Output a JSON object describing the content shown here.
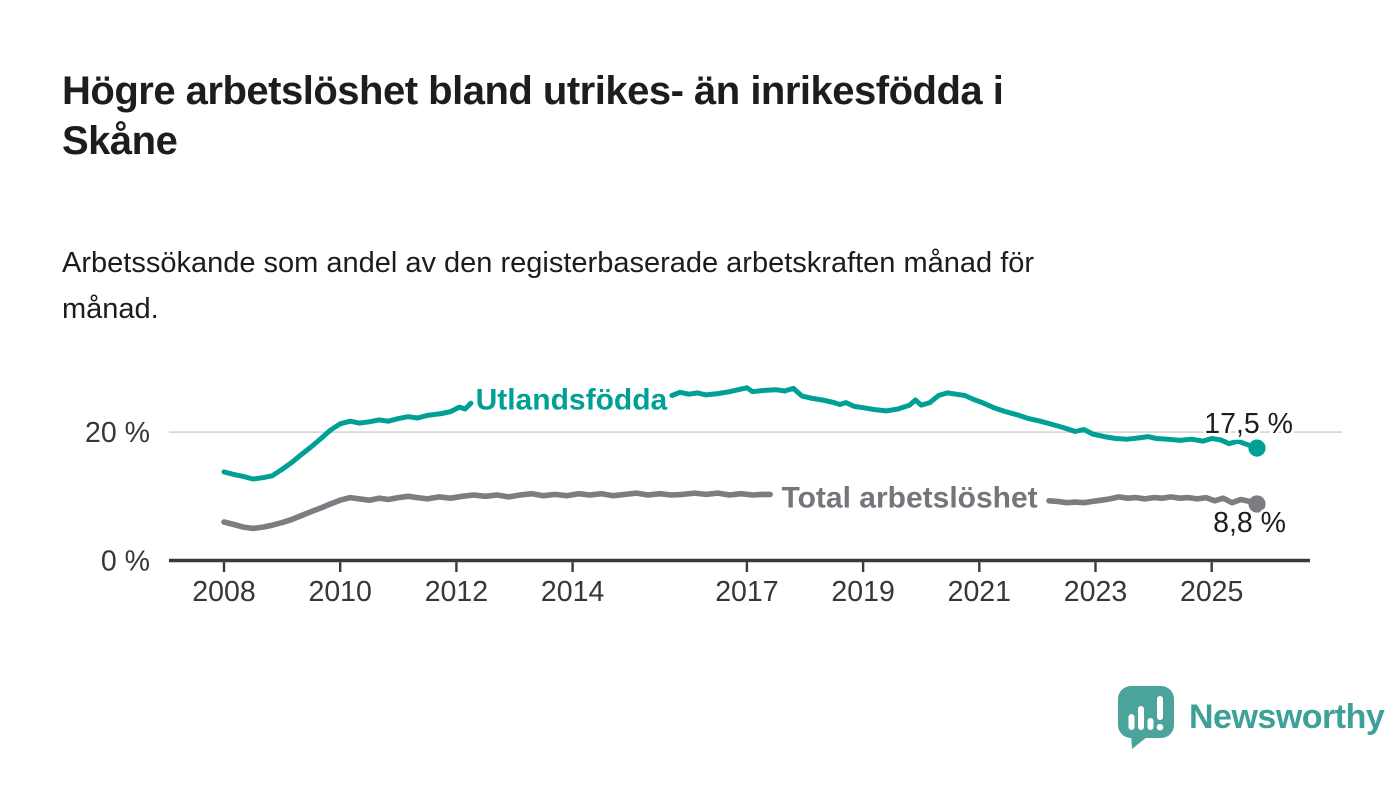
{
  "header": {
    "title": "Högre arbetslöshet bland utrikes- än inrikesfödda i Skåne",
    "title_lines": [
      "Högre arbetslöshet bland utrikes- än inrikesfödda i",
      "Skåne"
    ],
    "subtitle": "Arbetssökande som andel av den registerbaserade arbetskraften månad för månad.",
    "subtitle_lines": [
      "Arbetssökande som andel av den registerbaserade arbetskraften månad för",
      "månad."
    ]
  },
  "footer": {
    "brand": "Newsworthy"
  },
  "colors": {
    "teal_line": "#00a096",
    "gray_line": "#7d7c82",
    "gray_label": "#76757b",
    "axis": "#3a3a3a",
    "grid": "#d8d8d8",
    "text": "#1d1d1b",
    "brand_text_teal": "#3da099",
    "brand_bubble_teal": "#4ba49c"
  },
  "chart_data": {
    "type": "line",
    "unit": "%",
    "x_axis": {
      "ticks": [
        2008,
        2010,
        2012,
        2014,
        2017,
        2019,
        2021,
        2023,
        2025
      ],
      "tick_labels": [
        "2008",
        "2010",
        "2012",
        "2014",
        "2017",
        "2019",
        "2021",
        "2023",
        "2025"
      ],
      "range": [
        2007.05,
        2026.7
      ]
    },
    "y_axis": {
      "ticks": [
        0,
        20
      ],
      "tick_labels": [
        "0 %",
        "20 %"
      ],
      "range": [
        0,
        31
      ],
      "grid": true
    },
    "legend_position": "inline-on-line",
    "series": [
      {
        "name": "Utlandsfödda",
        "color": "#00a096",
        "label_color": "#00a096",
        "end_label": "17,5 %",
        "end_value": 17.5,
        "end_label_position": "above",
        "segments": [
          [
            [
              2008.0,
              13.8
            ],
            [
              2008.17,
              13.4
            ],
            [
              2008.33,
              13.1
            ],
            [
              2008.5,
              12.7
            ],
            [
              2008.67,
              12.9
            ],
            [
              2008.83,
              13.2
            ],
            [
              2009.0,
              14.2
            ],
            [
              2009.17,
              15.3
            ],
            [
              2009.33,
              16.5
            ],
            [
              2009.5,
              17.7
            ],
            [
              2009.67,
              19.0
            ],
            [
              2009.83,
              20.3
            ],
            [
              2010.0,
              21.3
            ],
            [
              2010.17,
              21.7
            ],
            [
              2010.33,
              21.4
            ],
            [
              2010.5,
              21.6
            ],
            [
              2010.67,
              21.9
            ],
            [
              2010.83,
              21.7
            ],
            [
              2011.0,
              22.1
            ],
            [
              2011.17,
              22.4
            ],
            [
              2011.33,
              22.2
            ],
            [
              2011.5,
              22.6
            ],
            [
              2011.75,
              22.9
            ],
            [
              2011.9,
              23.2
            ],
            [
              2012.05,
              23.9
            ],
            [
              2012.15,
              23.6
            ],
            [
              2012.25,
              24.5
            ]
          ],
          [
            [
              2015.71,
              25.7
            ],
            [
              2015.85,
              26.2
            ],
            [
              2016.0,
              25.9
            ],
            [
              2016.15,
              26.1
            ],
            [
              2016.3,
              25.8
            ],
            [
              2016.5,
              26.0
            ],
            [
              2016.7,
              26.3
            ],
            [
              2016.85,
              26.6
            ],
            [
              2017.0,
              26.9
            ],
            [
              2017.1,
              26.3
            ],
            [
              2017.3,
              26.5
            ],
            [
              2017.5,
              26.6
            ],
            [
              2017.65,
              26.4
            ],
            [
              2017.8,
              26.8
            ],
            [
              2017.95,
              25.6
            ],
            [
              2018.1,
              25.3
            ],
            [
              2018.3,
              25.0
            ],
            [
              2018.5,
              24.6
            ],
            [
              2018.6,
              24.3
            ],
            [
              2018.7,
              24.6
            ],
            [
              2018.85,
              24.0
            ],
            [
              2019.0,
              23.8
            ],
            [
              2019.2,
              23.5
            ],
            [
              2019.4,
              23.3
            ],
            [
              2019.6,
              23.6
            ],
            [
              2019.8,
              24.2
            ],
            [
              2019.9,
              25.0
            ],
            [
              2020.0,
              24.2
            ],
            [
              2020.15,
              24.6
            ],
            [
              2020.3,
              25.7
            ],
            [
              2020.45,
              26.1
            ],
            [
              2020.6,
              25.9
            ],
            [
              2020.75,
              25.7
            ],
            [
              2020.9,
              25.1
            ],
            [
              2021.05,
              24.6
            ],
            [
              2021.25,
              23.8
            ],
            [
              2021.45,
              23.2
            ],
            [
              2021.65,
              22.7
            ],
            [
              2021.85,
              22.1
            ],
            [
              2022.05,
              21.7
            ],
            [
              2022.25,
              21.2
            ],
            [
              2022.45,
              20.7
            ],
            [
              2022.65,
              20.1
            ],
            [
              2022.8,
              20.4
            ],
            [
              2022.95,
              19.7
            ],
            [
              2023.15,
              19.3
            ],
            [
              2023.35,
              19.0
            ],
            [
              2023.55,
              18.9
            ],
            [
              2023.75,
              19.1
            ],
            [
              2023.9,
              19.3
            ],
            [
              2024.05,
              19.0
            ],
            [
              2024.25,
              18.9
            ],
            [
              2024.45,
              18.7
            ],
            [
              2024.65,
              18.9
            ],
            [
              2024.85,
              18.6
            ],
            [
              2025.0,
              19.0
            ],
            [
              2025.15,
              18.8
            ],
            [
              2025.3,
              18.2
            ],
            [
              2025.45,
              18.6
            ],
            [
              2025.6,
              18.1
            ],
            [
              2025.78,
              17.5
            ]
          ]
        ]
      },
      {
        "name": "Total arbetslöshet",
        "color": "#7d7c82",
        "label_color": "#76757b",
        "end_label": "8,8 %",
        "end_value": 8.8,
        "end_label_position": "below",
        "segments": [
          [
            [
              2008.0,
              6.0
            ],
            [
              2008.17,
              5.6
            ],
            [
              2008.33,
              5.2
            ],
            [
              2008.5,
              5.0
            ],
            [
              2008.67,
              5.2
            ],
            [
              2008.83,
              5.5
            ],
            [
              2009.0,
              5.9
            ],
            [
              2009.17,
              6.4
            ],
            [
              2009.33,
              7.0
            ],
            [
              2009.5,
              7.6
            ],
            [
              2009.67,
              8.2
            ],
            [
              2009.83,
              8.8
            ],
            [
              2010.0,
              9.4
            ],
            [
              2010.17,
              9.8
            ],
            [
              2010.33,
              9.6
            ],
            [
              2010.5,
              9.4
            ],
            [
              2010.67,
              9.7
            ],
            [
              2010.83,
              9.5
            ],
            [
              2011.0,
              9.8
            ],
            [
              2011.17,
              10.0
            ],
            [
              2011.33,
              9.8
            ],
            [
              2011.5,
              9.6
            ],
            [
              2011.7,
              9.9
            ],
            [
              2011.9,
              9.7
            ],
            [
              2012.1,
              10.0
            ],
            [
              2012.3,
              10.2
            ],
            [
              2012.5,
              10.0
            ],
            [
              2012.7,
              10.2
            ],
            [
              2012.9,
              9.9
            ],
            [
              2013.1,
              10.2
            ],
            [
              2013.3,
              10.4
            ],
            [
              2013.5,
              10.1
            ],
            [
              2013.7,
              10.3
            ],
            [
              2013.9,
              10.1
            ],
            [
              2014.1,
              10.4
            ],
            [
              2014.3,
              10.2
            ],
            [
              2014.5,
              10.4
            ],
            [
              2014.7,
              10.1
            ],
            [
              2014.9,
              10.3
            ],
            [
              2015.1,
              10.5
            ],
            [
              2015.3,
              10.2
            ],
            [
              2015.5,
              10.4
            ],
            [
              2015.7,
              10.2
            ],
            [
              2015.9,
              10.3
            ],
            [
              2016.1,
              10.5
            ],
            [
              2016.3,
              10.3
            ],
            [
              2016.5,
              10.5
            ],
            [
              2016.7,
              10.2
            ],
            [
              2016.9,
              10.4
            ],
            [
              2017.1,
              10.2
            ],
            [
              2017.25,
              10.3
            ],
            [
              2017.4,
              10.3
            ]
          ],
          [
            [
              2022.2,
              9.3
            ],
            [
              2022.35,
              9.2
            ],
            [
              2022.5,
              9.0
            ],
            [
              2022.65,
              9.1
            ],
            [
              2022.8,
              9.0
            ],
            [
              2022.95,
              9.2
            ],
            [
              2023.1,
              9.4
            ],
            [
              2023.25,
              9.6
            ],
            [
              2023.4,
              9.9
            ],
            [
              2023.55,
              9.7
            ],
            [
              2023.7,
              9.8
            ],
            [
              2023.85,
              9.6
            ],
            [
              2024.0,
              9.8
            ],
            [
              2024.15,
              9.7
            ],
            [
              2024.3,
              9.9
            ],
            [
              2024.45,
              9.7
            ],
            [
              2024.6,
              9.8
            ],
            [
              2024.75,
              9.6
            ],
            [
              2024.9,
              9.8
            ],
            [
              2025.05,
              9.3
            ],
            [
              2025.2,
              9.7
            ],
            [
              2025.35,
              9.0
            ],
            [
              2025.5,
              9.5
            ],
            [
              2025.65,
              9.2
            ],
            [
              2025.78,
              8.8
            ]
          ]
        ]
      }
    ]
  }
}
